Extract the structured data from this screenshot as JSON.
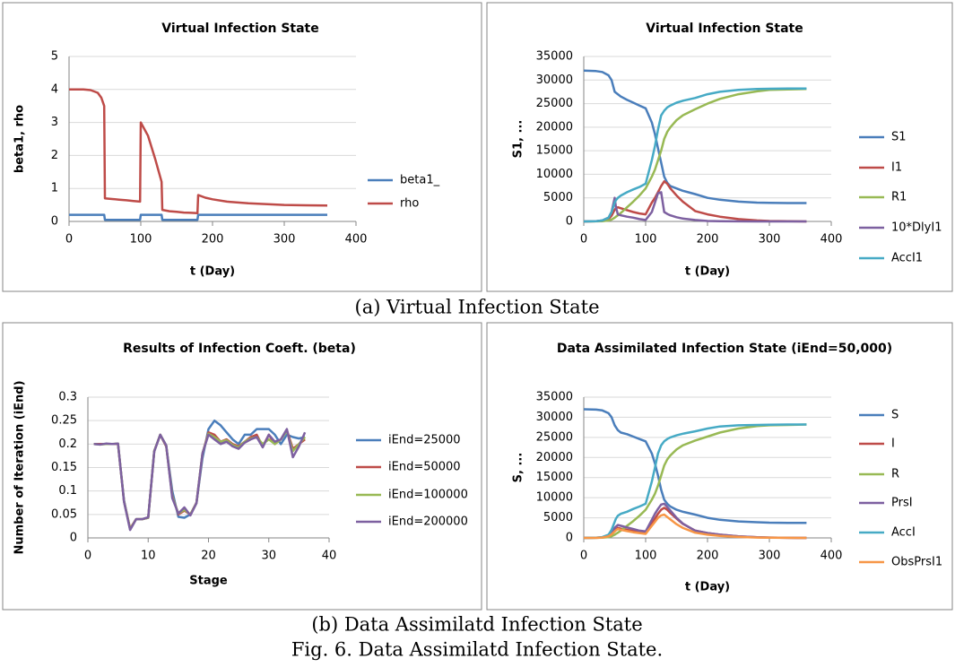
{
  "chart_data": [
    {
      "type": "line",
      "title": "Virtual Infection State",
      "xlabel": "t (Day)",
      "ylabel": "beta1, rho",
      "grid": true,
      "xlim": [
        0,
        400
      ],
      "ylim": [
        0,
        5
      ],
      "xticks": [
        0,
        100,
        200,
        300,
        400
      ],
      "yticks": [
        0,
        1,
        2,
        3,
        4,
        5
      ],
      "x": [
        0,
        10,
        20,
        30,
        40,
        45,
        49,
        50,
        60,
        70,
        80,
        90,
        99,
        100,
        110,
        120,
        129,
        130,
        140,
        150,
        160,
        170,
        179,
        180,
        190,
        200,
        220,
        250,
        280,
        300,
        330,
        360
      ],
      "series": [
        {
          "name": "beta1_",
          "color": "#4a7ebb",
          "values": [
            0.2,
            0.2,
            0.2,
            0.2,
            0.2,
            0.2,
            0.2,
            0.05,
            0.05,
            0.05,
            0.05,
            0.05,
            0.05,
            0.2,
            0.2,
            0.2,
            0.2,
            0.05,
            0.05,
            0.05,
            0.05,
            0.05,
            0.05,
            0.2,
            0.2,
            0.2,
            0.2,
            0.2,
            0.2,
            0.2,
            0.2,
            0.2
          ]
        },
        {
          "name": "rho",
          "color": "#be4b48",
          "values": [
            4,
            4,
            4,
            3.98,
            3.9,
            3.75,
            3.5,
            0.7,
            0.68,
            0.66,
            0.64,
            0.62,
            0.6,
            3.0,
            2.6,
            1.9,
            1.2,
            0.35,
            0.31,
            0.29,
            0.27,
            0.26,
            0.25,
            0.8,
            0.72,
            0.67,
            0.6,
            0.55,
            0.52,
            0.5,
            0.49,
            0.48
          ]
        }
      ]
    },
    {
      "type": "line",
      "title": "Virtual Infection State",
      "xlabel": "t (Day)",
      "ylabel": "S1, ...",
      "grid": true,
      "xlim": [
        0,
        400
      ],
      "ylim": [
        0,
        35000
      ],
      "xticks": [
        0,
        100,
        200,
        300,
        400
      ],
      "yticks": [
        0,
        5000,
        10000,
        15000,
        20000,
        25000,
        30000,
        35000
      ],
      "x": [
        0,
        20,
        30,
        40,
        45,
        50,
        52,
        55,
        60,
        70,
        80,
        90,
        100,
        110,
        115,
        120,
        125,
        130,
        135,
        140,
        150,
        160,
        180,
        200,
        220,
        250,
        280,
        300,
        330,
        360
      ],
      "series": [
        {
          "name": "S1",
          "color": "#4a7ebb",
          "values": [
            32000,
            31900,
            31700,
            31000,
            30000,
            27500,
            27300,
            27000,
            26500,
            25800,
            25200,
            24600,
            24000,
            21000,
            18500,
            15500,
            12500,
            9500,
            8200,
            7500,
            7000,
            6500,
            5800,
            5000,
            4600,
            4200,
            4000,
            3950,
            3900,
            3900
          ]
        },
        {
          "name": "I1",
          "color": "#be4b48",
          "values": [
            0,
            50,
            150,
            500,
            1200,
            2500,
            2800,
            3000,
            2800,
            2400,
            2000,
            1700,
            1500,
            4000,
            5000,
            6200,
            7500,
            8500,
            8000,
            7000,
            5500,
            4200,
            2200,
            1500,
            1000,
            500,
            200,
            100,
            50,
            0
          ]
        },
        {
          "name": "R1",
          "color": "#98b954",
          "values": [
            0,
            20,
            60,
            200,
            400,
            800,
            1000,
            1300,
            1800,
            3000,
            4200,
            5500,
            7000,
            9500,
            11000,
            13000,
            15000,
            17500,
            19000,
            20000,
            21500,
            22500,
            23800,
            25000,
            26000,
            27000,
            27600,
            27900,
            28000,
            28100
          ]
        },
        {
          "name": "10*DlyI1",
          "color": "#7d60a0",
          "values": [
            0,
            50,
            200,
            800,
            2000,
            5000,
            3000,
            1500,
            1300,
            1000,
            800,
            500,
            300,
            2000,
            4000,
            6000,
            6200,
            2000,
            1600,
            1300,
            900,
            600,
            300,
            100,
            50,
            20,
            0,
            0,
            0,
            0
          ]
        },
        {
          "name": "AccI1",
          "color": "#46aac5",
          "values": [
            0,
            50,
            200,
            800,
            2000,
            4000,
            4500,
            5000,
            5500,
            6200,
            6800,
            7300,
            8000,
            13000,
            16000,
            19500,
            22500,
            23500,
            24200,
            24600,
            25200,
            25600,
            26200,
            27000,
            27500,
            27900,
            28100,
            28150,
            28200,
            28200
          ]
        }
      ]
    },
    {
      "type": "line",
      "title": "Results of Infection Coeft. (beta)",
      "xlabel": "Stage",
      "ylabel": "Number of Iteration (iEnd)",
      "grid": true,
      "xlim": [
        0,
        40
      ],
      "ylim": [
        0,
        0.3
      ],
      "xticks": [
        0,
        10,
        20,
        30,
        40
      ],
      "yticks": [
        0,
        0.05,
        0.1,
        0.15,
        0.2,
        0.25,
        0.3
      ],
      "x": [
        1,
        2,
        3,
        4,
        5,
        6,
        7,
        8,
        9,
        10,
        11,
        12,
        13,
        14,
        15,
        16,
        17,
        18,
        19,
        20,
        21,
        22,
        23,
        24,
        25,
        26,
        27,
        28,
        29,
        30,
        31,
        32,
        33,
        34,
        35,
        36
      ],
      "series": [
        {
          "name": "iEnd=25000",
          "color": "#4a7ebb",
          "values": [
            0.2,
            0.2,
            0.2,
            0.2,
            0.2,
            0.08,
            0.018,
            0.04,
            0.04,
            0.043,
            0.185,
            0.22,
            0.195,
            0.1,
            0.045,
            0.043,
            0.05,
            0.075,
            0.17,
            0.232,
            0.25,
            0.24,
            0.225,
            0.21,
            0.2,
            0.22,
            0.22,
            0.232,
            0.232,
            0.232,
            0.22,
            0.2,
            0.22,
            0.215,
            0.212,
            0.215
          ]
        },
        {
          "name": "iEnd=50000",
          "color": "#be4b48",
          "values": [
            0.2,
            0.2,
            0.2,
            0.2,
            0.2,
            0.078,
            0.02,
            0.04,
            0.04,
            0.043,
            0.185,
            0.22,
            0.195,
            0.09,
            0.05,
            0.058,
            0.05,
            0.075,
            0.18,
            0.225,
            0.22,
            0.205,
            0.21,
            0.2,
            0.195,
            0.205,
            0.215,
            0.22,
            0.195,
            0.22,
            0.2,
            0.21,
            0.23,
            0.19,
            0.2,
            0.21
          ]
        },
        {
          "name": "iEnd=100000",
          "color": "#98b954",
          "values": [
            0.2,
            0.199,
            0.2,
            0.2,
            0.201,
            0.078,
            0.019,
            0.04,
            0.04,
            0.043,
            0.185,
            0.22,
            0.197,
            0.088,
            0.052,
            0.06,
            0.05,
            0.074,
            0.18,
            0.222,
            0.215,
            0.205,
            0.208,
            0.198,
            0.193,
            0.205,
            0.212,
            0.215,
            0.2,
            0.21,
            0.2,
            0.21,
            0.228,
            0.185,
            0.2,
            0.215
          ]
        },
        {
          "name": "iEnd=200000",
          "color": "#7d60a0",
          "values": [
            0.2,
            0.199,
            0.201,
            0.2,
            0.201,
            0.077,
            0.017,
            0.04,
            0.04,
            0.044,
            0.184,
            0.22,
            0.197,
            0.085,
            0.052,
            0.065,
            0.048,
            0.074,
            0.18,
            0.22,
            0.21,
            0.2,
            0.205,
            0.195,
            0.19,
            0.203,
            0.21,
            0.215,
            0.193,
            0.22,
            0.205,
            0.21,
            0.232,
            0.172,
            0.195,
            0.225
          ]
        }
      ]
    },
    {
      "type": "line",
      "title": "Data Assimilated Infection State (iEnd=50,000)",
      "xlabel": "t (Day)",
      "ylabel": "S, ...",
      "grid": true,
      "xlim": [
        0,
        400
      ],
      "ylim": [
        0,
        35000
      ],
      "xticks": [
        0,
        100,
        200,
        300,
        400
      ],
      "yticks": [
        0,
        5000,
        10000,
        15000,
        20000,
        25000,
        30000,
        35000
      ],
      "x": [
        0,
        20,
        30,
        40,
        45,
        50,
        52,
        55,
        60,
        70,
        80,
        90,
        100,
        110,
        115,
        120,
        125,
        130,
        135,
        140,
        150,
        160,
        180,
        200,
        220,
        250,
        280,
        300,
        330,
        360
      ],
      "series": [
        {
          "name": "S",
          "color": "#4a7ebb",
          "values": [
            32000,
            31900,
            31700,
            31000,
            30000,
            28000,
            27500,
            26800,
            26200,
            25800,
            25200,
            24600,
            24000,
            21000,
            18500,
            15500,
            12000,
            9500,
            8500,
            7800,
            7000,
            6500,
            5800,
            5000,
            4500,
            4100,
            3900,
            3800,
            3750,
            3750
          ]
        },
        {
          "name": "I",
          "color": "#be4b48",
          "values": [
            0,
            30,
            100,
            400,
            900,
            1800,
            2100,
            2500,
            2300,
            2000,
            1700,
            1400,
            1200,
            3500,
            4800,
            6000,
            7000,
            7500,
            7000,
            6200,
            4800,
            3500,
            1800,
            1200,
            800,
            400,
            150,
            80,
            30,
            0
          ]
        },
        {
          "name": "R",
          "color": "#98b954",
          "values": [
            0,
            20,
            50,
            200,
            400,
            800,
            1000,
            1300,
            1800,
            3000,
            4200,
            5500,
            7000,
            9500,
            11000,
            13000,
            15500,
            18000,
            19500,
            20500,
            22000,
            23000,
            24200,
            25200,
            26200,
            27200,
            27800,
            28000,
            28100,
            28200
          ]
        },
        {
          "name": "PrsI",
          "color": "#7d60a0",
          "values": [
            0,
            40,
            150,
            600,
            1300,
            2500,
            2800,
            3200,
            3000,
            2600,
            2200,
            1800,
            1600,
            4500,
            6000,
            7200,
            8300,
            8500,
            7700,
            6800,
            5000,
            3600,
            1800,
            1200,
            800,
            400,
            150,
            80,
            30,
            0
          ]
        },
        {
          "name": "AccI",
          "color": "#46aac5",
          "values": [
            0,
            50,
            200,
            800,
            2000,
            4000,
            4800,
            5500,
            6000,
            6500,
            7200,
            7800,
            8500,
            14000,
            17500,
            21000,
            23000,
            24000,
            24600,
            25000,
            25500,
            25900,
            26500,
            27200,
            27700,
            28000,
            28100,
            28150,
            28200,
            28200
          ]
        },
        {
          "name": "ObsPrsI1",
          "color": "#f79646",
          "values": [
            0,
            30,
            100,
            400,
            900,
            1600,
            1900,
            2200,
            2000,
            1700,
            1400,
            1200,
            1000,
            3000,
            4000,
            5000,
            5600,
            5800,
            5200,
            4600,
            3400,
            2500,
            1300,
            800,
            500,
            250,
            100,
            50,
            20,
            0
          ]
        }
      ]
    }
  ],
  "captions": {
    "a": "(a)  Virtual Infection State",
    "b": "(b) Data Assimilatd Infection State",
    "figure": "Fig. 6. Data Assimilatd Infection State."
  }
}
